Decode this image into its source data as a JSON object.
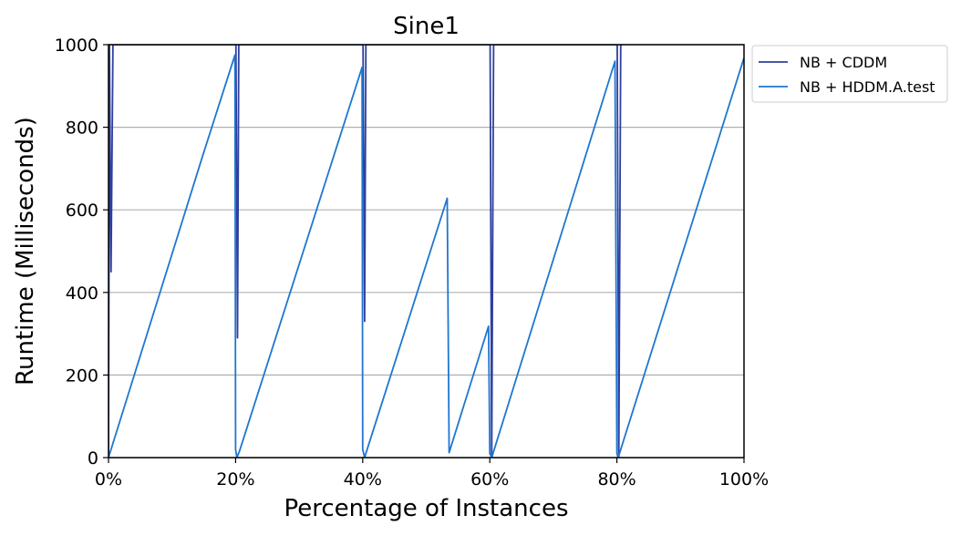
{
  "chart_data": {
    "type": "line",
    "title": "Sine1",
    "xlabel": "Percentage of Instances",
    "ylabel": "Runtime (Milliseconds)",
    "xlim": [
      0,
      100
    ],
    "ylim": [
      0,
      1000
    ],
    "x_ticks": [
      "0%",
      "20%",
      "40%",
      "60%",
      "80%",
      "100%"
    ],
    "x_tick_values": [
      0,
      20,
      40,
      60,
      80,
      100
    ],
    "y_ticks": [
      "0",
      "200",
      "400",
      "600",
      "800",
      "1000"
    ],
    "y_tick_values": [
      0,
      200,
      400,
      600,
      800,
      1000
    ],
    "grid": "horizontal",
    "legend_position": "outside-top-right",
    "series": [
      {
        "name": "NB + CDDM",
        "color": "#2e3f9e",
        "points": [
          [
            0,
            0
          ],
          [
            0.15,
            1000
          ],
          [
            0.4,
            450
          ],
          [
            0.7,
            1000
          ],
          [
            1.0,
            1000
          ],
          [
            19.9,
            1000
          ],
          [
            20.05,
            1000
          ],
          [
            20.3,
            290
          ],
          [
            20.5,
            1000
          ],
          [
            20.8,
            1000
          ],
          [
            39.9,
            1000
          ],
          [
            40.05,
            1000
          ],
          [
            40.3,
            330
          ],
          [
            40.5,
            1000
          ],
          [
            40.8,
            1000
          ],
          [
            59.8,
            1000
          ],
          [
            60.05,
            1000
          ],
          [
            60.3,
            0
          ],
          [
            60.6,
            1000
          ],
          [
            60.9,
            1000
          ],
          [
            79.8,
            1000
          ],
          [
            80.05,
            1000
          ],
          [
            80.3,
            0
          ],
          [
            80.6,
            1000
          ],
          [
            80.9,
            1000
          ]
        ]
      },
      {
        "name": "NB + HDDM.A.test",
        "color": "#1f77cf",
        "points": [
          [
            0,
            0
          ],
          [
            14.8,
            730
          ],
          [
            19.9,
            975
          ],
          [
            20.0,
            20
          ],
          [
            20.2,
            0
          ],
          [
            20.6,
            15
          ],
          [
            39.9,
            945
          ],
          [
            40.0,
            20
          ],
          [
            40.3,
            0
          ],
          [
            40.6,
            15
          ],
          [
            53.3,
            628
          ],
          [
            53.6,
            12
          ],
          [
            59.8,
            318
          ],
          [
            60.0,
            10
          ],
          [
            60.3,
            0
          ],
          [
            79.7,
            960
          ],
          [
            80.0,
            10
          ],
          [
            80.2,
            0
          ],
          [
            100,
            968
          ]
        ]
      }
    ]
  }
}
